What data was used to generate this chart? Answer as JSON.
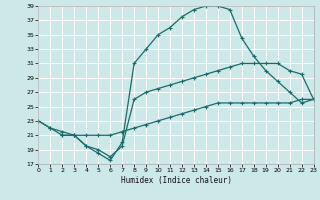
{
  "xlabel": "Humidex (Indice chaleur)",
  "xlim": [
    0,
    23
  ],
  "ylim": [
    17,
    39
  ],
  "xticks": [
    0,
    1,
    2,
    3,
    4,
    5,
    6,
    7,
    8,
    9,
    10,
    11,
    12,
    13,
    14,
    15,
    16,
    17,
    18,
    19,
    20,
    21,
    22,
    23
  ],
  "yticks": [
    17,
    19,
    21,
    23,
    25,
    27,
    29,
    31,
    33,
    35,
    37,
    39
  ],
  "bg_color": "#cde8e8",
  "grid_color": "#ffffff",
  "line_color": "#1a6b6b",
  "curve1_x": [
    0,
    1,
    2,
    3,
    4,
    5,
    6,
    7,
    8,
    9,
    10,
    11,
    12,
    13,
    14,
    15,
    16,
    17,
    18,
    19,
    20,
    21,
    22,
    23
  ],
  "curve1_y": [
    23,
    22,
    21.5,
    21,
    21,
    21,
    21,
    21.5,
    22,
    22.5,
    23,
    23.5,
    24,
    24.5,
    25,
    25.5,
    25.5,
    25.5,
    25.5,
    25.5,
    25.5,
    25.5,
    26,
    26
  ],
  "curve2_x": [
    0,
    1,
    2,
    3,
    4,
    5,
    6,
    7,
    8,
    9,
    10,
    11,
    12,
    13,
    14,
    15,
    16,
    17,
    18,
    19,
    20,
    21,
    22,
    23
  ],
  "curve2_y": [
    23,
    22,
    21,
    21,
    19.5,
    18.5,
    17.5,
    20,
    31,
    33,
    35,
    36,
    37.5,
    38.5,
    39,
    39,
    38.5,
    34.5,
    32,
    30,
    28.5,
    27,
    25.5,
    26
  ],
  "curve3_x": [
    2,
    3,
    4,
    5,
    6,
    7,
    8,
    9,
    10,
    11,
    12,
    13,
    14,
    15,
    16,
    17,
    18,
    19,
    20,
    21,
    22,
    23
  ],
  "curve3_y": [
    21,
    21,
    19.5,
    19,
    18,
    19.5,
    26,
    27,
    27.5,
    28,
    28.5,
    29,
    29.5,
    30,
    30.5,
    31,
    31,
    31,
    31,
    30,
    29.5,
    26
  ]
}
